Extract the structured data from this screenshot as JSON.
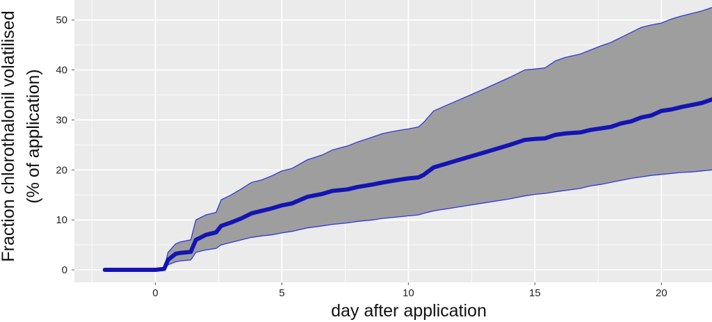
{
  "chart_data": {
    "type": "area",
    "title": "",
    "xlabel": "day after application",
    "ylabel_lines": [
      "Fraction chlorothalonil volatilised",
      "(% of application)"
    ],
    "xlim": [
      -3.2,
      22
    ],
    "ylim": [
      -2.5,
      54
    ],
    "x_ticks": [
      0,
      5,
      10,
      15,
      20
    ],
    "x_tick_labels": [
      "0",
      "5",
      "10",
      "15",
      "20"
    ],
    "y_ticks": [
      0,
      10,
      20,
      30,
      40,
      50
    ],
    "y_tick_labels": [
      "0",
      "10",
      "20",
      "30",
      "40",
      "50"
    ],
    "grid": true,
    "legend": "none",
    "colors": {
      "panel": "#ebebeb",
      "grid": "#ffffff",
      "band_fill": "#9e9e9e",
      "band_edge": "#2f36e0",
      "median_line": "#1414b4"
    },
    "series": [
      {
        "role": "median",
        "x": [
          -2,
          -1,
          0,
          0.35,
          0.5,
          0.8,
          1.0,
          1.4,
          1.6,
          2.0,
          2.4,
          2.6,
          3.0,
          3.4,
          3.8,
          4.2,
          4.6,
          5.0,
          5.4,
          6.0,
          6.6,
          7.0,
          7.6,
          8.0,
          8.6,
          9.0,
          9.6,
          10.0,
          10.4,
          10.6,
          11.0,
          12.0,
          13.0,
          14.0,
          14.6,
          15.0,
          15.4,
          15.8,
          16.2,
          16.8,
          17.2,
          17.6,
          18.0,
          18.4,
          18.8,
          19.2,
          19.6,
          20.0,
          20.4,
          20.8,
          21.2,
          21.6,
          22.0
        ],
        "y": [
          0,
          0,
          0,
          0.2,
          2.0,
          3.2,
          3.4,
          3.6,
          6.0,
          7.0,
          7.5,
          8.8,
          9.5,
          10.3,
          11.3,
          11.8,
          12.3,
          12.9,
          13.3,
          14.6,
          15.2,
          15.8,
          16.1,
          16.6,
          17.1,
          17.5,
          18.0,
          18.3,
          18.5,
          19.0,
          20.5,
          22.0,
          23.5,
          25.0,
          26.0,
          26.2,
          26.3,
          27.0,
          27.3,
          27.5,
          28.0,
          28.3,
          28.6,
          29.3,
          29.7,
          30.5,
          30.9,
          31.8,
          32.1,
          32.6,
          33.0,
          33.4,
          34.1
        ]
      },
      {
        "role": "upper",
        "x": [
          -2,
          -1,
          0,
          0.35,
          0.5,
          0.8,
          1.0,
          1.4,
          1.6,
          2.0,
          2.4,
          2.6,
          3.0,
          3.4,
          3.8,
          4.2,
          4.6,
          5.0,
          5.4,
          6.0,
          6.6,
          7.0,
          7.6,
          8.0,
          8.6,
          9.0,
          9.6,
          10.0,
          10.4,
          10.6,
          11.0,
          12.0,
          13.0,
          14.0,
          14.6,
          15.0,
          15.4,
          15.8,
          16.2,
          16.8,
          17.2,
          17.6,
          18.0,
          18.4,
          18.8,
          19.2,
          19.6,
          20.0,
          20.4,
          20.8,
          21.2,
          21.6,
          22.0
        ],
        "y": [
          0,
          0,
          0,
          0.3,
          3.5,
          5.2,
          5.6,
          6.0,
          10.0,
          11.0,
          11.5,
          14.0,
          15.0,
          16.2,
          17.5,
          18.0,
          18.8,
          19.8,
          20.3,
          22.0,
          23.0,
          24.0,
          24.8,
          25.6,
          26.6,
          27.3,
          27.9,
          28.2,
          28.6,
          29.5,
          31.8,
          34.0,
          36.2,
          38.5,
          40.0,
          40.2,
          40.4,
          41.8,
          42.5,
          43.2,
          44.0,
          44.8,
          45.5,
          46.5,
          47.5,
          48.5,
          49.0,
          49.4,
          50.2,
          50.8,
          51.3,
          51.8,
          52.5
        ]
      },
      {
        "role": "lower",
        "x": [
          -2,
          -1,
          0,
          0.35,
          0.5,
          0.8,
          1.0,
          1.4,
          1.6,
          2.0,
          2.4,
          2.6,
          3.0,
          3.4,
          3.8,
          4.2,
          4.6,
          5.0,
          5.4,
          6.0,
          6.6,
          7.0,
          7.6,
          8.0,
          8.6,
          9.0,
          9.6,
          10.0,
          10.4,
          10.6,
          11.0,
          12.0,
          13.0,
          14.0,
          14.6,
          15.0,
          15.4,
          15.8,
          16.2,
          16.8,
          17.2,
          17.6,
          18.0,
          18.4,
          18.8,
          19.2,
          19.6,
          20.0,
          20.4,
          20.8,
          21.2,
          21.6,
          22.0
        ],
        "y": [
          0,
          0,
          0,
          0.1,
          1.0,
          1.6,
          1.8,
          2.0,
          3.5,
          4.0,
          4.3,
          5.0,
          5.5,
          6.0,
          6.5,
          6.8,
          7.0,
          7.4,
          7.7,
          8.4,
          8.8,
          9.1,
          9.4,
          9.7,
          10.0,
          10.3,
          10.6,
          10.8,
          11.0,
          11.3,
          11.8,
          12.6,
          13.4,
          14.2,
          14.8,
          15.1,
          15.3,
          15.6,
          15.9,
          16.3,
          16.8,
          17.1,
          17.5,
          17.9,
          18.3,
          18.6,
          18.9,
          19.1,
          19.3,
          19.5,
          19.6,
          19.8,
          20.0
        ]
      }
    ]
  }
}
